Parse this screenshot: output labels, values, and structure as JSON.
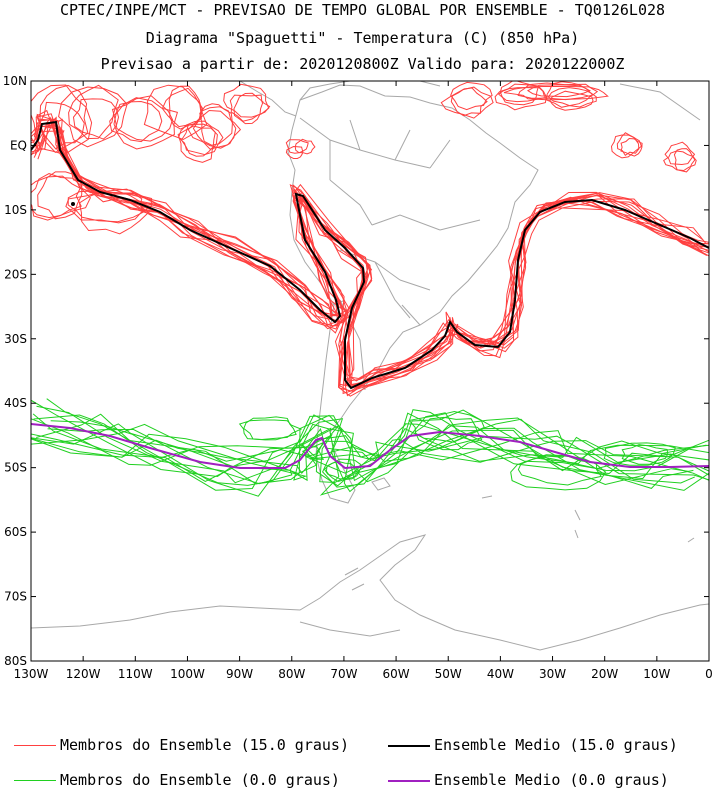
{
  "header": {
    "line1": "CPTEC/INPE/MCT - PREVISAO DE TEMPO GLOBAL POR ENSEMBLE - TQ0126L028",
    "line2": "Diagrama \"Spaguetti\" - Temperatura (C) (850 hPa)",
    "line3": "Previsao a partir de: 2020120800Z  Valido para: 2020122000Z"
  },
  "axes": {
    "lat_labels": [
      "10N",
      "EQ",
      "10S",
      "20S",
      "30S",
      "40S",
      "50S",
      "60S",
      "70S",
      "80S"
    ],
    "lon_labels": [
      "130W",
      "120W",
      "110W",
      "100W",
      "90W",
      "80W",
      "70W",
      "60W",
      "50W",
      "40W",
      "30W",
      "20W",
      "10W",
      "0"
    ]
  },
  "colors": {
    "red_member": "#ff4040",
    "black_mean": "#000000",
    "green_member": "#20d020",
    "purple_mean": "#a020c0",
    "coast": "#a8a8a8"
  },
  "legend": {
    "red_members": "Membros do Ensemble (15.0 graus)",
    "black_mean": "Ensemble Medio (15.0 graus)",
    "green_members": "Membros do Ensemble (0.0 graus)",
    "purple_mean": "Ensemble Medio (0.0 graus)"
  }
}
